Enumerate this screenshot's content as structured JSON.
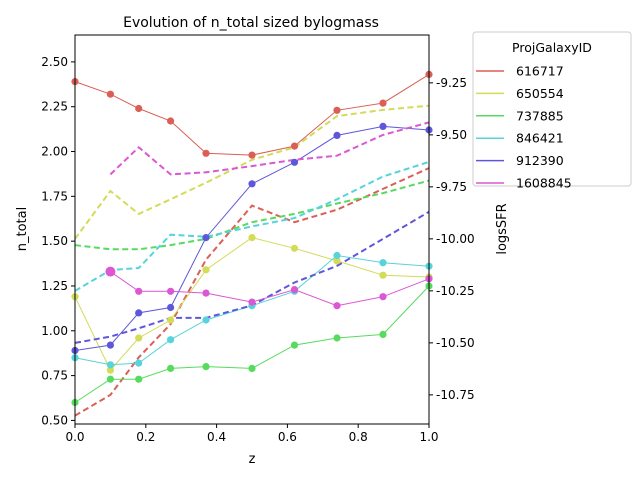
{
  "chart_data": {
    "type": "line",
    "title": "Evolution of n_total sized bylogmass",
    "xlabel": "z",
    "ylabel": "n_total",
    "y2label": "logsSFR",
    "xlim": [
      0,
      1
    ],
    "ylim": [
      0.48,
      2.65
    ],
    "y2lim": [
      -10.89,
      -9.02
    ],
    "x_ticks": [
      "0.0",
      "0.2",
      "0.4",
      "0.6",
      "0.8",
      "1.0"
    ],
    "y_ticks": [
      "0.50",
      "0.75",
      "1.00",
      "1.25",
      "1.50",
      "1.75",
      "2.00",
      "2.25",
      "2.50"
    ],
    "y2_ticks": [
      "-9.25",
      "-9.50",
      "-9.75",
      "-10.00",
      "-10.25",
      "-10.50",
      "-10.75"
    ],
    "grid": false,
    "legend_title": "ProjGalaxyID",
    "legend_position": "outside-right-top",
    "x": [
      0.0,
      0.1,
      0.18,
      0.27,
      0.37,
      0.5,
      0.62,
      0.74,
      0.87,
      1.0
    ],
    "series": [
      {
        "name": "616717",
        "color": "#db5f57",
        "n_total": [
          2.39,
          2.32,
          2.24,
          2.17,
          1.99,
          1.98,
          2.03,
          2.23,
          2.27,
          2.43
        ],
        "logsSFR": [
          -10.85,
          -10.75,
          -10.57,
          -10.41,
          -10.1,
          -9.84,
          -9.92,
          -9.86,
          -9.76,
          -9.66
        ]
      },
      {
        "name": "650554",
        "color": "#d3db57",
        "n_total": [
          1.19,
          0.78,
          0.96,
          1.06,
          1.34,
          1.52,
          1.46,
          1.39,
          1.31,
          1.3
        ],
        "logsSFR": [
          -10.0,
          -9.77,
          -9.88,
          -9.81,
          -9.73,
          -9.62,
          -9.56,
          -9.41,
          -9.38,
          -9.36
        ]
      },
      {
        "name": "737885",
        "color": "#57db5f",
        "n_total": [
          0.6,
          0.73,
          0.73,
          0.79,
          0.8,
          0.79,
          0.92,
          0.96,
          0.98,
          1.25
        ],
        "logsSFR": [
          -10.03,
          -10.05,
          -10.05,
          -10.03,
          -10.0,
          -9.92,
          -9.88,
          -9.83,
          -9.78,
          -9.72
        ]
      },
      {
        "name": "846421",
        "color": "#57d3db",
        "n_total": [
          0.85,
          0.81,
          0.82,
          0.95,
          1.06,
          1.14,
          1.22,
          1.42,
          1.38,
          1.36
        ],
        "logsSFR": [
          -10.25,
          -10.15,
          -10.14,
          -9.98,
          -9.99,
          -9.94,
          -9.9,
          -9.81,
          -9.7,
          -9.63
        ]
      },
      {
        "name": "912390",
        "color": "#5f57db",
        "n_total": [
          0.89,
          0.92,
          1.1,
          1.13,
          1.52,
          1.82,
          1.94,
          2.09,
          2.14,
          2.12
        ],
        "logsSFR": [
          -10.5,
          -10.47,
          -10.43,
          -10.38,
          -10.38,
          -10.32,
          -10.21,
          -10.13,
          -10.0,
          -9.87
        ]
      },
      {
        "name": "1608845",
        "color": "#db57d3",
        "n_total": [
          null,
          1.33,
          1.22,
          1.22,
          1.21,
          1.16,
          1.23,
          1.14,
          1.19,
          1.29
        ],
        "logsSFR": [
          null,
          -9.69,
          -9.56,
          -9.69,
          -9.68,
          -9.65,
          -9.62,
          -9.6,
          -9.5,
          -9.44
        ]
      }
    ]
  }
}
